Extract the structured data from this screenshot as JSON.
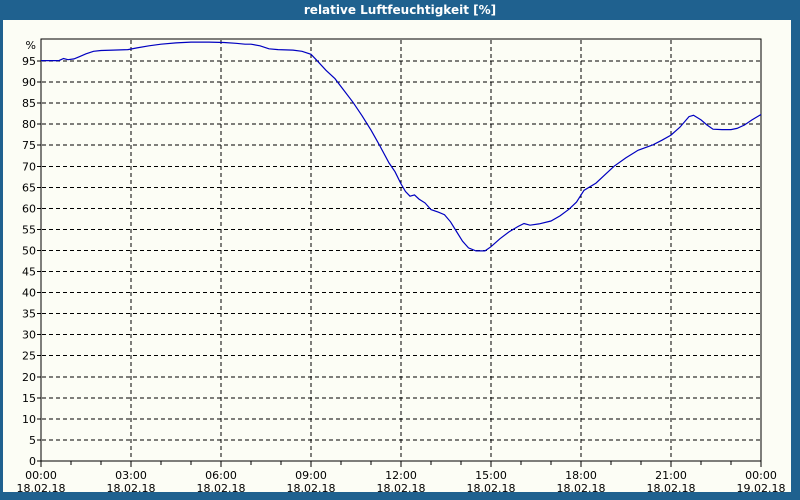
{
  "window": {
    "title": "relative Luftfeuchtigkeit [%]",
    "colors": {
      "titlebar": "#1f618f",
      "border": "#1f618f",
      "background": "#fcfdf5",
      "grid": "#000000",
      "frame": "#000000",
      "line": "#0000c0",
      "label_text": "#000000",
      "title_text": "#ffffff"
    }
  },
  "chart_data": {
    "type": "line",
    "title": "relative Luftfeuchtigkeit [%]",
    "ylabel": "%",
    "y_unit_label": "%",
    "ylim": [
      0,
      100.2
    ],
    "y_tick_step": 5,
    "y_ticks": [
      0,
      5,
      10,
      15,
      20,
      25,
      30,
      35,
      40,
      45,
      50,
      55,
      60,
      65,
      70,
      75,
      80,
      85,
      90,
      95
    ],
    "xlim_hours": [
      0,
      24
    ],
    "x_minor_tick_interval_hours": 1,
    "x_major_ticks": [
      {
        "hour": 0,
        "time": "00:00",
        "date": "18.02.18"
      },
      {
        "hour": 3,
        "time": "03:00",
        "date": "18.02.18"
      },
      {
        "hour": 6,
        "time": "06:00",
        "date": "18.02.18"
      },
      {
        "hour": 9,
        "time": "09:00",
        "date": "18.02.18"
      },
      {
        "hour": 12,
        "time": "12:00",
        "date": "18.02.18"
      },
      {
        "hour": 15,
        "time": "15:00",
        "date": "18.02.18"
      },
      {
        "hour": 18,
        "time": "18:00",
        "date": "18.02.18"
      },
      {
        "hour": 21,
        "time": "21:00",
        "date": "18.02.18"
      },
      {
        "hour": 24,
        "time": "00:00",
        "date": "19.02.18"
      }
    ],
    "grid": true,
    "legend": "none",
    "series": [
      {
        "name": "relative Luftfeuchtigkeit",
        "unit": "%",
        "points": [
          [
            0.0,
            95.1
          ],
          [
            0.3,
            95.1
          ],
          [
            0.6,
            95.1
          ],
          [
            0.75,
            95.6
          ],
          [
            0.9,
            95.3
          ],
          [
            1.1,
            95.5
          ],
          [
            1.3,
            96.1
          ],
          [
            1.5,
            96.7
          ],
          [
            1.75,
            97.3
          ],
          [
            2.0,
            97.5
          ],
          [
            2.4,
            97.6
          ],
          [
            2.9,
            97.7
          ],
          [
            3.2,
            98.1
          ],
          [
            3.6,
            98.6
          ],
          [
            4.0,
            99.0
          ],
          [
            4.5,
            99.3
          ],
          [
            5.0,
            99.5
          ],
          [
            5.6,
            99.5
          ],
          [
            6.1,
            99.4
          ],
          [
            6.5,
            99.2
          ],
          [
            6.8,
            99.0
          ],
          [
            7.0,
            99.0
          ],
          [
            7.3,
            98.6
          ],
          [
            7.6,
            97.9
          ],
          [
            7.9,
            97.7
          ],
          [
            8.4,
            97.6
          ],
          [
            8.7,
            97.3
          ],
          [
            9.0,
            96.6
          ],
          [
            9.2,
            95.1
          ],
          [
            9.5,
            92.8
          ],
          [
            9.8,
            90.8
          ],
          [
            10.1,
            88.0
          ],
          [
            10.4,
            85.2
          ],
          [
            10.7,
            82.0
          ],
          [
            11.0,
            78.6
          ],
          [
            11.3,
            74.8
          ],
          [
            11.6,
            70.8
          ],
          [
            11.8,
            68.7
          ],
          [
            12.0,
            65.8
          ],
          [
            12.15,
            64.0
          ],
          [
            12.3,
            62.9
          ],
          [
            12.45,
            63.2
          ],
          [
            12.6,
            62.2
          ],
          [
            12.8,
            61.3
          ],
          [
            13.0,
            59.7
          ],
          [
            13.25,
            59.1
          ],
          [
            13.45,
            58.5
          ],
          [
            13.65,
            56.8
          ],
          [
            13.85,
            54.5
          ],
          [
            14.05,
            52.2
          ],
          [
            14.25,
            50.6
          ],
          [
            14.5,
            49.9
          ],
          [
            14.8,
            49.9
          ],
          [
            15.0,
            50.9
          ],
          [
            15.3,
            52.8
          ],
          [
            15.6,
            54.4
          ],
          [
            15.9,
            55.7
          ],
          [
            16.1,
            56.4
          ],
          [
            16.3,
            56.0
          ],
          [
            16.6,
            56.3
          ],
          [
            17.0,
            57.0
          ],
          [
            17.3,
            58.2
          ],
          [
            17.6,
            59.8
          ],
          [
            17.85,
            61.5
          ],
          [
            18.1,
            64.3
          ],
          [
            18.5,
            66.0
          ],
          [
            18.8,
            68.0
          ],
          [
            19.1,
            70.0
          ],
          [
            19.5,
            72.0
          ],
          [
            19.9,
            73.8
          ],
          [
            20.4,
            75.1
          ],
          [
            20.7,
            76.2
          ],
          [
            21.0,
            77.4
          ],
          [
            21.3,
            79.3
          ],
          [
            21.6,
            81.8
          ],
          [
            21.75,
            82.1
          ],
          [
            22.0,
            81.0
          ],
          [
            22.2,
            79.8
          ],
          [
            22.4,
            78.8
          ],
          [
            22.7,
            78.7
          ],
          [
            23.0,
            78.7
          ],
          [
            23.2,
            79.0
          ],
          [
            23.45,
            79.8
          ],
          [
            23.7,
            81.0
          ],
          [
            24.0,
            82.3
          ]
        ]
      }
    ]
  }
}
